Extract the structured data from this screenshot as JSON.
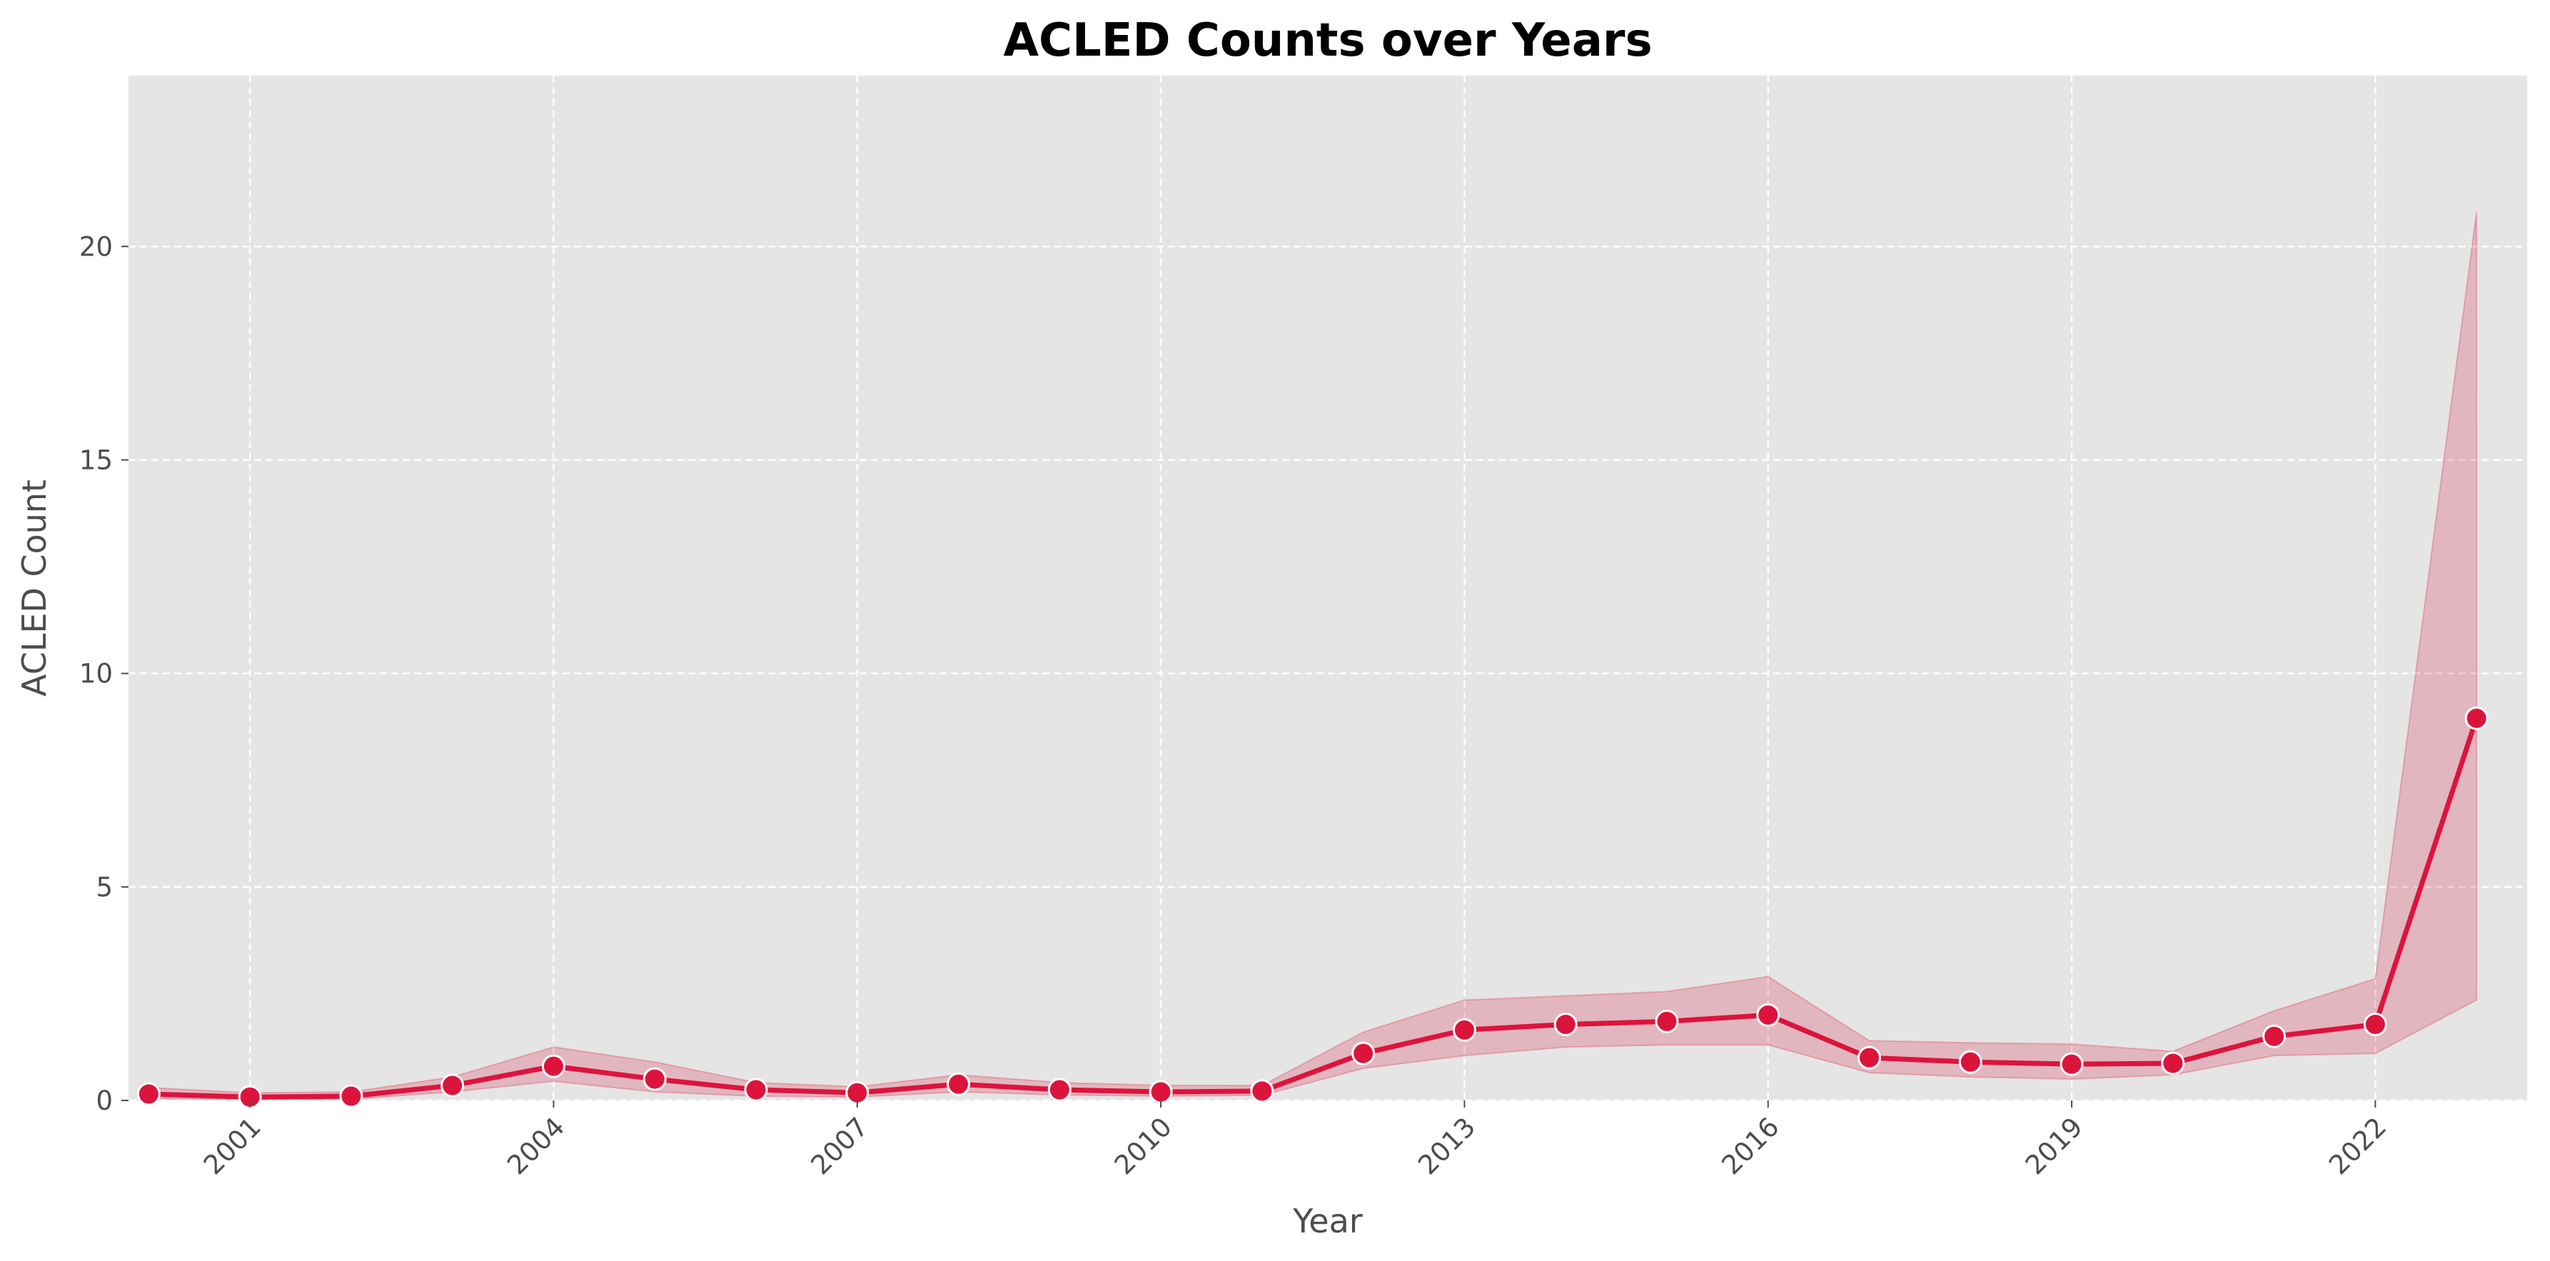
{
  "chart_data": {
    "type": "line",
    "title": "ACLED Counts over Years",
    "xlabel": "Year",
    "ylabel": "ACLED Count",
    "x": [
      2000,
      2001,
      2002,
      2003,
      2004,
      2005,
      2006,
      2007,
      2008,
      2009,
      2010,
      2011,
      2012,
      2013,
      2014,
      2015,
      2016,
      2017,
      2018,
      2019,
      2020,
      2021,
      2022,
      2023
    ],
    "series": [
      {
        "values": [
          0.15,
          0.08,
          0.1,
          0.35,
          0.8,
          0.5,
          0.25,
          0.18,
          0.38,
          0.25,
          0.2,
          0.22,
          1.1,
          1.65,
          1.78,
          1.85,
          2.0,
          1.0,
          0.9,
          0.85,
          0.87,
          1.5,
          1.78,
          8.95
        ],
        "ci_low": [
          0.05,
          0.02,
          0.03,
          0.2,
          0.45,
          0.2,
          0.1,
          0.08,
          0.2,
          0.13,
          0.1,
          0.12,
          0.75,
          1.05,
          1.25,
          1.3,
          1.3,
          0.65,
          0.55,
          0.5,
          0.6,
          1.05,
          1.1,
          2.35
        ],
        "ci_high": [
          0.3,
          0.18,
          0.2,
          0.55,
          1.25,
          0.9,
          0.42,
          0.32,
          0.6,
          0.42,
          0.35,
          0.35,
          1.6,
          2.35,
          2.45,
          2.55,
          2.9,
          1.4,
          1.35,
          1.32,
          1.15,
          2.1,
          2.85,
          20.8
        ]
      }
    ],
    "xticks": [
      2001,
      2004,
      2007,
      2010,
      2013,
      2016,
      2019,
      2022
    ],
    "yticks": [
      0,
      5,
      10,
      15,
      20
    ],
    "xlim": [
      1999.8,
      2023.5
    ],
    "ylim": [
      0,
      24
    ],
    "grid": true,
    "colors": {
      "line": "#dc143c",
      "band": "#dc143c",
      "plot_background": "#e5e5e5",
      "grid": "#ffffff"
    }
  }
}
